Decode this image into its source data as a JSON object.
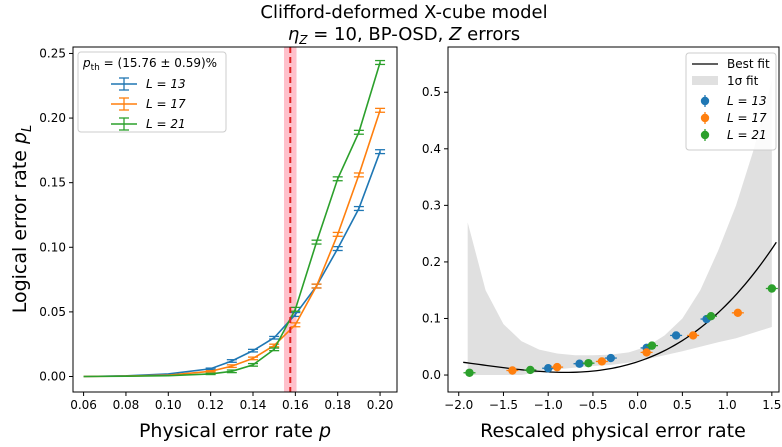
{
  "figure": {
    "title_line1": "Clifford-deformed X-cube model",
    "title_line2_prefix": "η",
    "title_line2_sub": "Z",
    "title_line2_rest": " = 10, BP-OSD, ",
    "title_line2_z": "Z",
    "title_line2_end": " errors"
  },
  "chart_data": [
    {
      "type": "line",
      "xlabel_text": "Physical error rate ",
      "xlabel_var": "p",
      "ylabel_text": "Logical error rate ",
      "ylabel_var": "p",
      "ylabel_sub": "L",
      "xlim": [
        0.055,
        0.208
      ],
      "ylim": [
        -0.012,
        0.255
      ],
      "xticks": [
        0.06,
        0.08,
        0.1,
        0.12,
        0.14,
        0.16,
        0.18,
        0.2
      ],
      "xtick_labels": [
        "0.06",
        "0.08",
        "0.10",
        "0.12",
        "0.14",
        "0.16",
        "0.18",
        "0.20"
      ],
      "yticks": [
        0.0,
        0.05,
        0.1,
        0.15,
        0.2,
        0.25
      ],
      "ytick_labels": [
        "0.00",
        "0.05",
        "0.10",
        "0.15",
        "0.20",
        "0.25"
      ],
      "threshold": {
        "value": 0.1576,
        "error": 0.0059,
        "color": "#e02020",
        "band_color": "#ffc0cb"
      },
      "legend_title": "(15.76 ± 0.59)%",
      "legend_title_var": "p",
      "legend_title_sub": "th",
      "legend_position": "top-left",
      "x": [
        0.06,
        0.08,
        0.1,
        0.12,
        0.13,
        0.14,
        0.15,
        0.16,
        0.17,
        0.18,
        0.19,
        0.2
      ],
      "series": [
        {
          "name": "L = 13",
          "color": "#1f77b4",
          "values": [
            0.0,
            0.0005,
            0.002,
            0.006,
            0.012,
            0.02,
            0.03,
            0.048,
            0.07,
            0.099,
            0.13,
            0.174
          ],
          "errors": [
            0,
            0,
            0,
            0.0005,
            0.001,
            0.001,
            0.001,
            0.0015,
            0.0015,
            0.0015,
            0.0015,
            0.0015
          ]
        },
        {
          "name": "L = 17",
          "color": "#ff7f0e",
          "values": [
            0.0,
            0.0003,
            0.001,
            0.004,
            0.008,
            0.014,
            0.024,
            0.04,
            0.07,
            0.11,
            0.156,
            0.206
          ],
          "errors": [
            0,
            0,
            0,
            0.0005,
            0.001,
            0.001,
            0.001,
            0.0015,
            0.0015,
            0.0015,
            0.0015,
            0.0015
          ]
        },
        {
          "name": "L = 21",
          "color": "#2ca02c",
          "values": [
            0.0,
            0.0002,
            0.0006,
            0.002,
            0.004,
            0.009,
            0.021,
            0.052,
            0.104,
            0.153,
            0.189,
            0.243
          ],
          "errors": [
            0,
            0,
            0,
            0.0005,
            0.001,
            0.001,
            0.001,
            0.0015,
            0.0015,
            0.0015,
            0.0015,
            0.0015
          ]
        }
      ]
    },
    {
      "type": "scatter",
      "xlabel": "Rescaled physical error rate",
      "xlim": [
        -2.12,
        1.58
      ],
      "ylim": [
        -0.03,
        0.58
      ],
      "xticks": [
        -2.0,
        -1.5,
        -1.0,
        -0.5,
        0.0,
        0.5,
        1.0,
        1.5
      ],
      "xtick_labels": [
        "−2.0",
        "−1.5",
        "−1.0",
        "−0.5",
        "0.0",
        "0.5",
        "1.0",
        "1.5"
      ],
      "yticks": [
        0.0,
        0.1,
        0.2,
        0.3,
        0.4,
        0.5
      ],
      "ytick_labels": [
        "0.0",
        "0.1",
        "0.2",
        "0.3",
        "0.4",
        "0.5"
      ],
      "legend_position": "top-right",
      "fit": {
        "name": "Best fit",
        "color": "#000000",
        "a": 0.0235,
        "b": 0.052,
        "c": 0.042,
        "d": 0.008
      },
      "fit_band": {
        "name": "1σ fit",
        "color": "#e0e0e0",
        "x": [
          -1.9,
          -1.7,
          -1.5,
          -1.3,
          -1.1,
          -0.9,
          -0.7,
          -0.5,
          -0.3,
          -0.1,
          0.1,
          0.3,
          0.5,
          0.7,
          0.9,
          1.1,
          1.3,
          1.5
        ],
        "upper": [
          0.27,
          0.15,
          0.09,
          0.06,
          0.045,
          0.038,
          0.035,
          0.035,
          0.036,
          0.04,
          0.05,
          0.07,
          0.1,
          0.15,
          0.22,
          0.3,
          0.4,
          0.52
        ],
        "lower": [
          0.0,
          0.0,
          0.0,
          0.0,
          0.005,
          0.01,
          0.013,
          0.016,
          0.018,
          0.022,
          0.028,
          0.035,
          0.042,
          0.05,
          0.058,
          0.065,
          0.075,
          0.085
        ]
      },
      "series": [
        {
          "name": "L = 13",
          "color": "#1f77b4",
          "x": [
            -1.0,
            -0.65,
            -0.3,
            0.1,
            0.43,
            0.77
          ],
          "y": [
            0.012,
            0.02,
            0.03,
            0.048,
            0.07,
            0.099
          ]
        },
        {
          "name": "L = 17",
          "color": "#ff7f0e",
          "x": [
            -1.4,
            -0.9,
            -0.4,
            0.1,
            0.62,
            1.12
          ],
          "y": [
            0.008,
            0.014,
            0.024,
            0.04,
            0.07,
            0.11
          ]
        },
        {
          "name": "L = 21",
          "color": "#2ca02c",
          "x": [
            -1.88,
            -1.2,
            -0.55,
            0.16,
            0.82,
            1.5
          ],
          "y": [
            0.004,
            0.009,
            0.021,
            0.052,
            0.104,
            0.153
          ]
        }
      ]
    }
  ]
}
